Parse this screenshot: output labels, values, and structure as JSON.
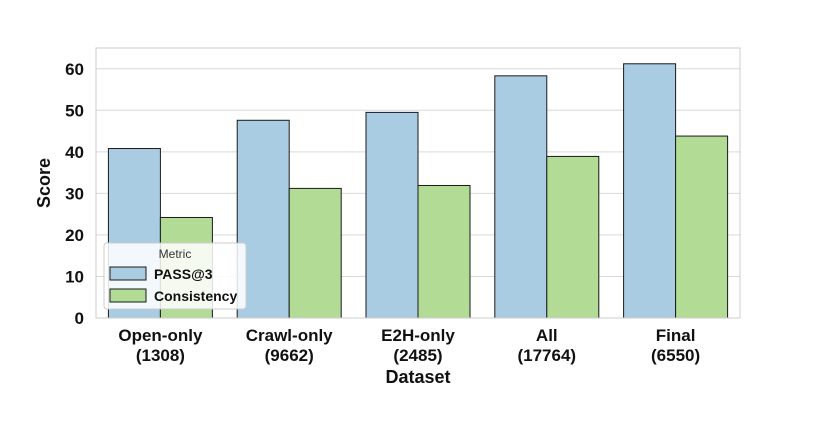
{
  "chart_data": {
    "type": "bar",
    "categories": [
      [
        "Open-only",
        "(1308)"
      ],
      [
        "Crawl-only",
        "(9662)"
      ],
      [
        "E2H-only",
        "(2485)"
      ],
      [
        "All",
        "(17764)"
      ],
      [
        "Final",
        "(6550)"
      ]
    ],
    "series": [
      {
        "name": "PASS@3",
        "color": "#a9cce3",
        "values": [
          40.8,
          47.6,
          49.5,
          58.3,
          61.2
        ]
      },
      {
        "name": "Consistency",
        "color": "#b2dc96",
        "values": [
          24.2,
          31.2,
          31.9,
          38.9,
          43.8
        ]
      }
    ],
    "xlabel": "Dataset",
    "ylabel": "Score",
    "ylim": [
      0,
      65
    ],
    "yticks": [
      0,
      10,
      20,
      30,
      40,
      50,
      60
    ],
    "grid": true,
    "legend": {
      "title": "Metric",
      "placement": "lower-left"
    }
  }
}
